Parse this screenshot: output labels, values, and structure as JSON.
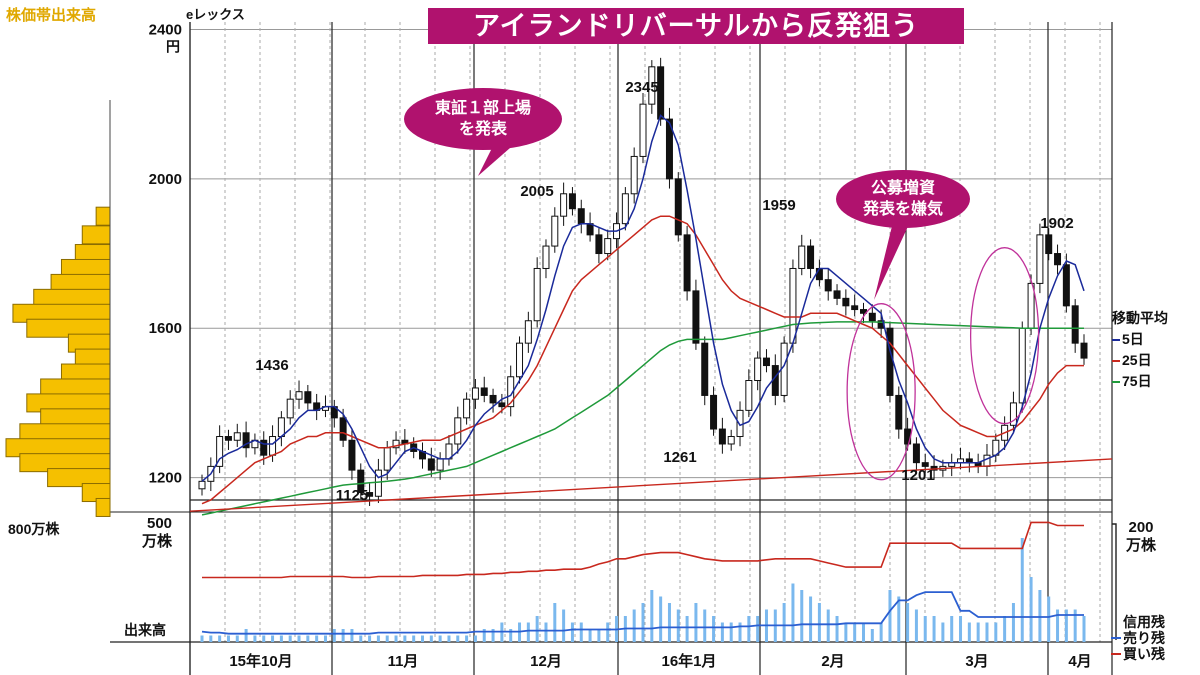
{
  "header": {
    "title": "アイランドリバーサルから反発狙う",
    "stock_name": "eレックス",
    "volume_profile_title": "株価帯出来高",
    "volume_profile_scale": "800万株"
  },
  "callouts": {
    "listing": [
      "東証１部上場",
      "を発表"
    ],
    "offering": [
      "公募増資",
      "発表を嫌気"
    ]
  },
  "legend": {
    "title": "移動平均",
    "items": [
      {
        "label": "5日",
        "color": "#1a2a9a"
      },
      {
        "label": "25日",
        "color": "#c8281e"
      },
      {
        "label": "75日",
        "color": "#1f9a3a"
      }
    ]
  },
  "lower_panel": {
    "volume_label": "出来高",
    "left_scale": [
      "500",
      "万株"
    ],
    "right_scale": [
      "200",
      "万株"
    ],
    "margin_legend_title": "信用残",
    "sell_label": "売り残",
    "buy_label": "買い残",
    "sell_color": "#2b5fd1",
    "buy_color": "#c8281e"
  },
  "chart_data": {
    "type": "candlestick",
    "y_unit": "円",
    "ylim": [
      1140,
      2420
    ],
    "y_ticks": [
      1200,
      1600,
      2000,
      2400
    ],
    "x_labels": [
      "15年10月",
      "11月",
      "12月",
      "16年1月",
      "2月",
      "3月",
      "4月"
    ],
    "annotations": [
      {
        "label": "1436",
        "value": 1436
      },
      {
        "label": "1125",
        "value": 1125
      },
      {
        "label": "2005",
        "value": 2005
      },
      {
        "label": "2345",
        "value": 2345
      },
      {
        "label": "1261",
        "value": 1261
      },
      {
        "label": "1959",
        "value": 1959
      },
      {
        "label": "1201",
        "value": 1201
      },
      {
        "label": "1902",
        "value": 1902
      }
    ],
    "closes": [
      1190,
      1230,
      1310,
      1300,
      1320,
      1280,
      1300,
      1260,
      1310,
      1360,
      1410,
      1430,
      1400,
      1380,
      1390,
      1360,
      1300,
      1220,
      1160,
      1150,
      1220,
      1280,
      1300,
      1290,
      1270,
      1250,
      1220,
      1250,
      1290,
      1360,
      1410,
      1440,
      1420,
      1400,
      1390,
      1470,
      1560,
      1620,
      1760,
      1820,
      1900,
      1960,
      1920,
      1880,
      1850,
      1800,
      1840,
      1880,
      1960,
      2060,
      2200,
      2300,
      2160,
      2000,
      1850,
      1700,
      1560,
      1420,
      1330,
      1290,
      1310,
      1380,
      1460,
      1520,
      1500,
      1420,
      1560,
      1760,
      1820,
      1760,
      1730,
      1700,
      1680,
      1660,
      1650,
      1640,
      1620,
      1600,
      1420,
      1330,
      1290,
      1240,
      1230,
      1220,
      1230,
      1240,
      1250,
      1240,
      1230,
      1260,
      1300,
      1340,
      1400,
      1600,
      1720,
      1850,
      1800,
      1770,
      1660,
      1560,
      1520
    ],
    "ma5": [
      1190,
      1210,
      1250,
      1265,
      1275,
      1290,
      1300,
      1290,
      1290,
      1310,
      1330,
      1360,
      1380,
      1380,
      1390,
      1390,
      1370,
      1330,
      1280,
      1230,
      1200,
      1210,
      1240,
      1270,
      1280,
      1270,
      1260,
      1250,
      1250,
      1270,
      1300,
      1340,
      1370,
      1390,
      1410,
      1420,
      1460,
      1500,
      1570,
      1650,
      1740,
      1820,
      1870,
      1880,
      1880,
      1870,
      1860,
      1860,
      1870,
      1920,
      2000,
      2100,
      2170,
      2150,
      2090,
      1970,
      1840,
      1700,
      1560,
      1450,
      1380,
      1340,
      1350,
      1390,
      1440,
      1470,
      1500,
      1560,
      1640,
      1720,
      1760,
      1760,
      1740,
      1720,
      1700,
      1680,
      1660,
      1640,
      1540,
      1460,
      1400,
      1330,
      1280,
      1250,
      1240,
      1240,
      1240,
      1240,
      1240,
      1250,
      1260,
      1280,
      1320,
      1390,
      1480,
      1600,
      1680,
      1740,
      1780,
      1770,
      1700
    ],
    "ma25": [
      1130,
      1140,
      1160,
      1180,
      1200,
      1220,
      1240,
      1250,
      1260,
      1270,
      1290,
      1300,
      1310,
      1310,
      1320,
      1320,
      1320,
      1310,
      1300,
      1290,
      1280,
      1280,
      1285,
      1290,
      1295,
      1300,
      1300,
      1300,
      1310,
      1320,
      1330,
      1340,
      1350,
      1360,
      1380,
      1400,
      1430,
      1460,
      1500,
      1550,
      1600,
      1650,
      1700,
      1730,
      1750,
      1770,
      1790,
      1810,
      1830,
      1850,
      1870,
      1890,
      1900,
      1900,
      1890,
      1880,
      1850,
      1810,
      1770,
      1730,
      1700,
      1680,
      1670,
      1660,
      1650,
      1640,
      1630,
      1630,
      1630,
      1640,
      1640,
      1640,
      1640,
      1630,
      1620,
      1610,
      1600,
      1580,
      1560,
      1530,
      1500,
      1470,
      1440,
      1410,
      1380,
      1360,
      1340,
      1330,
      1320,
      1310,
      1310,
      1320,
      1330,
      1350,
      1380,
      1410,
      1450,
      1480,
      1500,
      1500,
      1500
    ],
    "ma75": [
      1100,
      1105,
      1110,
      1115,
      1120,
      1125,
      1130,
      1135,
      1140,
      1145,
      1150,
      1155,
      1160,
      1165,
      1170,
      1175,
      1180,
      1182,
      1184,
      1186,
      1188,
      1190,
      1193,
      1196,
      1200,
      1205,
      1210,
      1215,
      1220,
      1225,
      1230,
      1240,
      1250,
      1260,
      1270,
      1280,
      1290,
      1300,
      1310,
      1320,
      1330,
      1345,
      1360,
      1375,
      1390,
      1405,
      1420,
      1440,
      1460,
      1480,
      1500,
      1520,
      1540,
      1555,
      1565,
      1570,
      1570,
      1570,
      1570,
      1570,
      1575,
      1580,
      1585,
      1590,
      1595,
      1600,
      1605,
      1610,
      1612,
      1614,
      1615,
      1616,
      1617,
      1617,
      1617,
      1617,
      1617,
      1616,
      1615,
      1614,
      1613,
      1612,
      1611,
      1610,
      1609,
      1608,
      1607,
      1606,
      1605,
      1604,
      1603,
      1602,
      1601,
      1600,
      1600,
      1600,
      1600,
      1600,
      1600,
      1600,
      1600
    ],
    "long_trend": {
      "start": 1110,
      "end": 1250
    },
    "volume_profile": [
      {
        "price": 1900,
        "volume": 4
      },
      {
        "price": 1850,
        "volume": 8
      },
      {
        "price": 1800,
        "volume": 10
      },
      {
        "price": 1760,
        "volume": 14
      },
      {
        "price": 1720,
        "volume": 17
      },
      {
        "price": 1680,
        "volume": 22
      },
      {
        "price": 1640,
        "volume": 28
      },
      {
        "price": 1600,
        "volume": 24
      },
      {
        "price": 1560,
        "volume": 12
      },
      {
        "price": 1520,
        "volume": 10
      },
      {
        "price": 1480,
        "volume": 14
      },
      {
        "price": 1440,
        "volume": 20
      },
      {
        "price": 1400,
        "volume": 24
      },
      {
        "price": 1360,
        "volume": 20
      },
      {
        "price": 1320,
        "volume": 26
      },
      {
        "price": 1280,
        "volume": 30
      },
      {
        "price": 1240,
        "volume": 26
      },
      {
        "price": 1200,
        "volume": 18
      },
      {
        "price": 1160,
        "volume": 8
      },
      {
        "price": 1120,
        "volume": 4
      }
    ],
    "volume_bars": [
      1,
      1,
      1,
      1,
      1,
      2,
      1,
      1,
      1,
      1,
      1,
      1,
      1,
      1,
      1,
      2,
      2,
      2,
      1,
      1,
      1,
      1,
      1,
      1,
      1,
      1,
      1,
      1,
      1,
      1,
      1,
      1,
      2,
      2,
      3,
      2,
      3,
      3,
      4,
      3,
      6,
      5,
      3,
      3,
      2,
      2,
      3,
      4,
      4,
      5,
      6,
      8,
      7,
      6,
      5,
      4,
      6,
      5,
      4,
      3,
      3,
      3,
      4,
      4,
      5,
      5,
      6,
      9,
      8,
      7,
      6,
      5,
      4,
      3,
      3,
      3,
      2,
      3,
      8,
      7,
      6,
      5,
      4,
      4,
      3,
      4,
      4,
      3,
      3,
      3,
      3,
      4,
      6,
      16,
      10,
      8,
      7,
      5,
      5,
      5,
      4
    ],
    "margin_sell": [
      10,
      9,
      9,
      8,
      8,
      8,
      8,
      8,
      8,
      8,
      8,
      8,
      8,
      8,
      8,
      8,
      8,
      8,
      8,
      8,
      9,
      9,
      9,
      9,
      9,
      9,
      9,
      9,
      9,
      9,
      9,
      10,
      10,
      10,
      10,
      10,
      10,
      11,
      11,
      11,
      11,
      11,
      12,
      12,
      12,
      12,
      12,
      12,
      13,
      13,
      13,
      13,
      14,
      14,
      14,
      14,
      14,
      14,
      14,
      14,
      14,
      15,
      15,
      16,
      16,
      16,
      16,
      16,
      17,
      17,
      17,
      17,
      17,
      18,
      18,
      18,
      18,
      18,
      30,
      40,
      40,
      45,
      48,
      48,
      48,
      48,
      30,
      30,
      24,
      24,
      24,
      24,
      24,
      24,
      24,
      24,
      24,
      26,
      26,
      26,
      26
    ],
    "margin_buy": [
      62,
      62,
      62,
      62,
      62,
      62,
      62,
      62,
      62,
      62,
      63,
      63,
      63,
      63,
      63,
      63,
      63,
      62,
      62,
      62,
      63,
      63,
      63,
      63,
      63,
      64,
      64,
      64,
      64,
      64,
      65,
      65,
      65,
      66,
      66,
      67,
      67,
      68,
      68,
      69,
      69,
      70,
      70,
      70,
      72,
      75,
      77,
      80,
      80,
      82,
      84,
      85,
      86,
      86,
      86,
      84,
      82,
      80,
      79,
      78,
      78,
      78,
      78,
      78,
      79,
      80,
      80,
      80,
      80,
      80,
      78,
      76,
      74,
      72,
      72,
      72,
      72,
      72,
      95,
      95,
      95,
      95,
      95,
      95,
      95,
      95,
      90,
      90,
      90,
      90,
      90,
      90,
      90,
      90,
      115,
      115,
      115,
      112,
      112,
      112,
      112
    ],
    "ovals": [
      {
        "center_index": 77,
        "center_value": 1430,
        "label": ""
      },
      {
        "center_index": 91,
        "center_value": 1580,
        "label": ""
      }
    ]
  }
}
